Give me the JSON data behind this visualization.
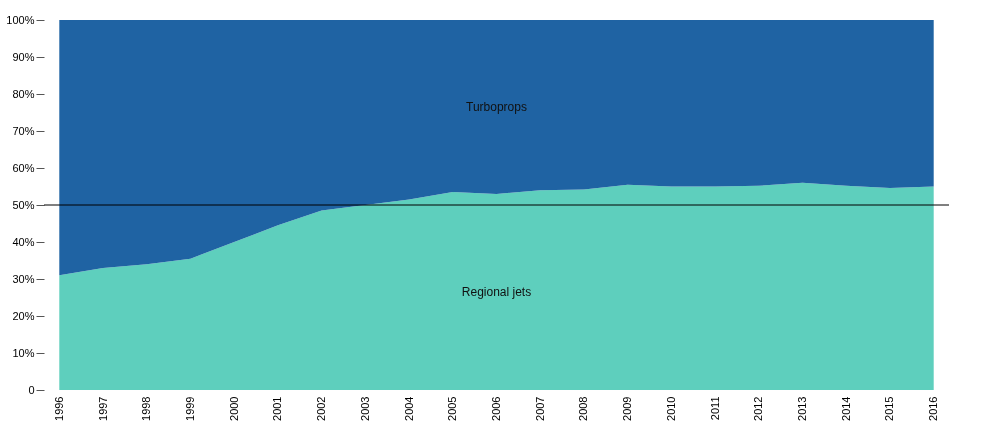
{
  "chart_data": {
    "type": "area",
    "stacked": true,
    "categories": [
      "1996",
      "1997",
      "1998",
      "1999",
      "2000",
      "2001",
      "2002",
      "2003",
      "2004",
      "2005",
      "2006",
      "2007",
      "2008",
      "2009",
      "2010",
      "2011",
      "2012",
      "2013",
      "2014",
      "2015",
      "2016"
    ],
    "series": [
      {
        "name": "Regional jets",
        "color": "#5ecfbd",
        "values": [
          31,
          33,
          34,
          35.5,
          40,
          44.5,
          48.5,
          50,
          51.5,
          53.5,
          53,
          54,
          54.2,
          55.5,
          55,
          55,
          55.2,
          56,
          55.2,
          54.6,
          55
        ]
      },
      {
        "name": "Turboprops",
        "color": "#1f63a3",
        "values": [
          69,
          67,
          66,
          64.5,
          60,
          55.5,
          51.5,
          50,
          48.5,
          46.5,
          47,
          46,
          45.8,
          44.5,
          45,
          45,
          44.8,
          44,
          44.8,
          45.4,
          45
        ]
      }
    ],
    "ylim": [
      0,
      100
    ],
    "yticks": [
      0,
      {
        "value": 10,
        "label": "10%"
      },
      {
        "value": 20,
        "label": "20%"
      },
      {
        "value": 30,
        "label": "30%"
      },
      {
        "value": 40,
        "label": "40%"
      },
      {
        "value": 50,
        "label": "50%"
      },
      {
        "value": 60,
        "label": "60%"
      },
      {
        "value": 70,
        "label": "70%"
      },
      {
        "value": 80,
        "label": "80%"
      },
      {
        "value": 90,
        "label": "90%"
      },
      {
        "value": 100,
        "label": "100%"
      }
    ],
    "ref_lines": [
      {
        "axis": "y",
        "value": 50,
        "color": "#000000"
      }
    ],
    "grid": false,
    "legend": false
  }
}
